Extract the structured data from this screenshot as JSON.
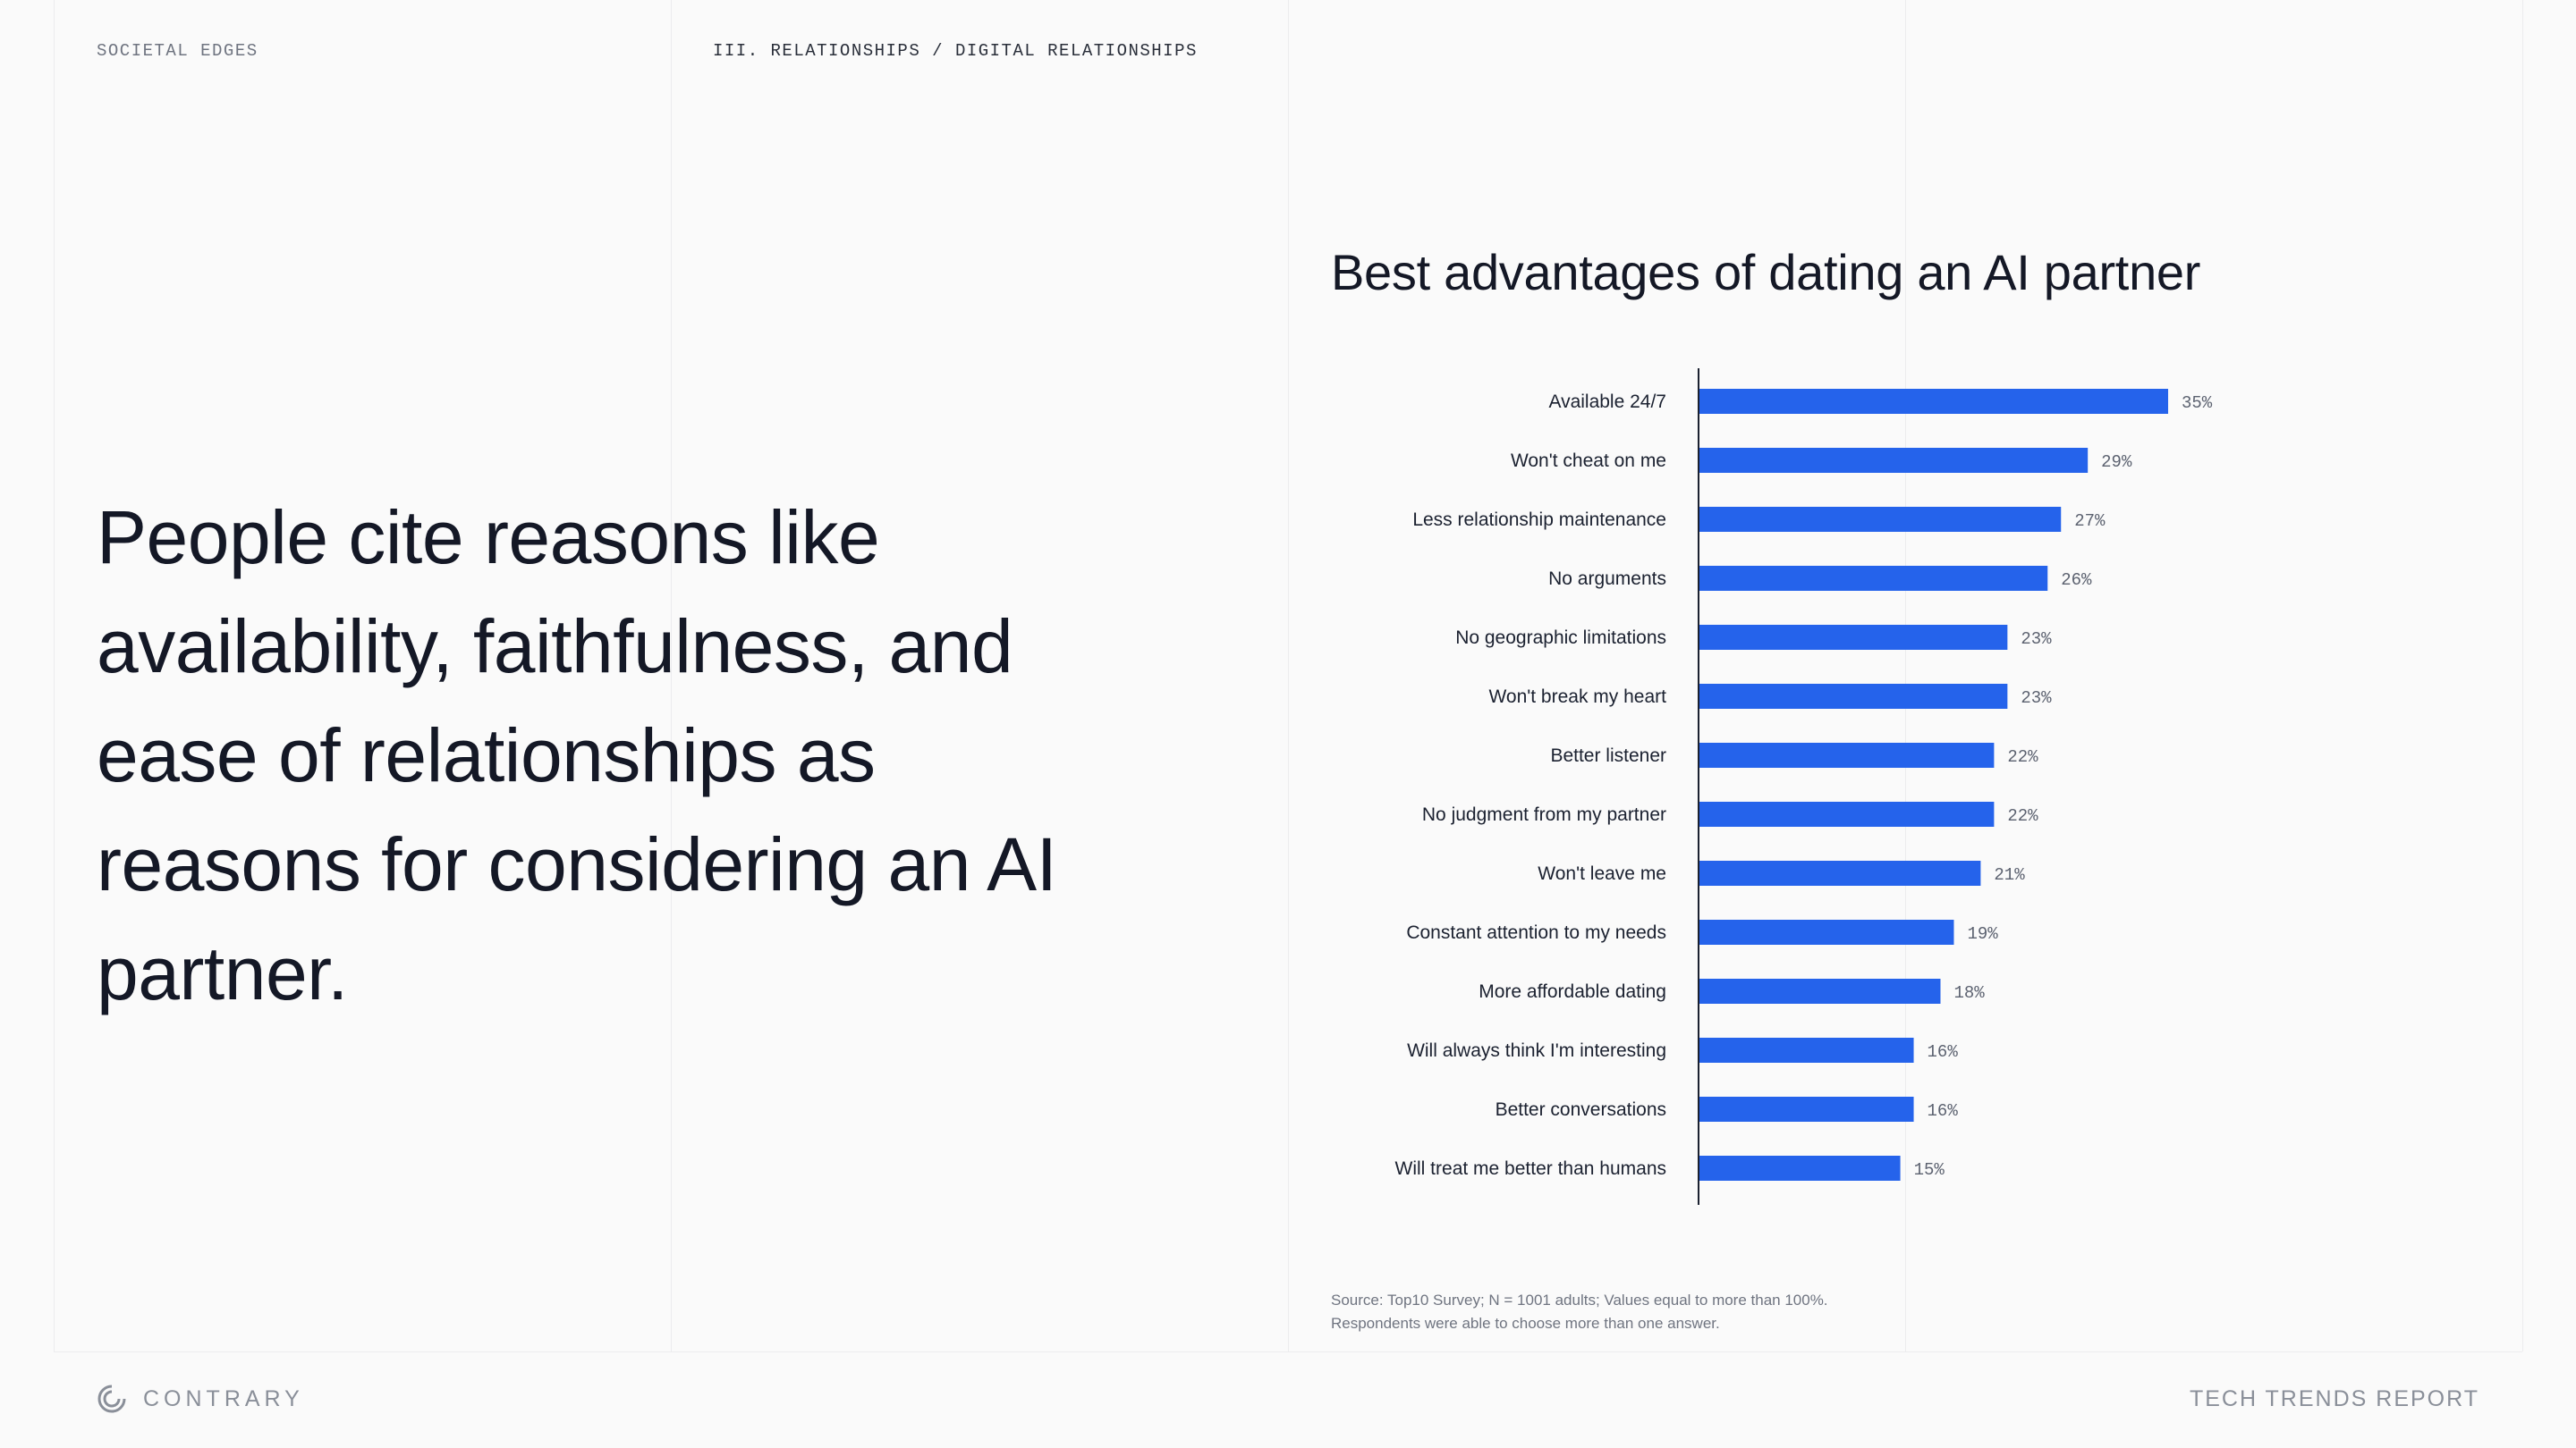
{
  "header": {
    "section_left": "SOCIETAL EDGES",
    "breadcrumb": "III. RELATIONSHIPS / DIGITAL RELATIONSHIPS"
  },
  "main": {
    "headline": "People cite reasons like availability, faithfulness, and ease of relationships as reasons for considering an AI partner."
  },
  "chart_data": {
    "type": "bar",
    "orientation": "horizontal",
    "title": "Best advantages of dating an AI partner",
    "xlabel": "",
    "ylabel": "",
    "xlim": [
      0,
      35
    ],
    "grid": false,
    "bar_color": "#2563eb",
    "categories": [
      "Available 24/7",
      "Won't cheat on me",
      "Less relationship maintenance",
      "No arguments",
      "No geographic limitations",
      "Won't break my heart",
      "Better listener",
      "No judgment from my partner",
      "Won't leave me",
      "Constant attention to my needs",
      "More affordable dating",
      "Will always think I'm interesting",
      "Better conversations",
      "Will treat me better than humans"
    ],
    "values": [
      35,
      29,
      27,
      26,
      23,
      23,
      22,
      22,
      21,
      19,
      18,
      16,
      16,
      15
    ],
    "value_labels": [
      "35%",
      "29%",
      "27%",
      "26%",
      "23%",
      "23%",
      "22%",
      "22%",
      "21%",
      "19%",
      "18%",
      "16%",
      "16%",
      "15%"
    ]
  },
  "footnote": {
    "line1": "Source: Top10 Survey; N = 1001 adults; Values equal to more than 100%.",
    "line2": "Respondents were able to choose more than one answer."
  },
  "footer": {
    "brand": "CONTRARY",
    "brand_icon": "contrary-logo-icon",
    "report": "TECH TRENDS REPORT"
  }
}
